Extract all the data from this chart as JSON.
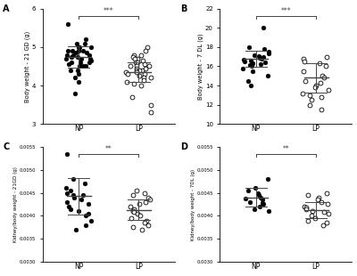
{
  "panel_A": {
    "label": "A",
    "ylabel": "Body weight - 21 GD (g)",
    "ylim": [
      3,
      6
    ],
    "yticks": [
      3,
      4,
      5,
      6
    ],
    "NP_mean": 4.75,
    "NP_sd": 0.28,
    "LP_mean": 4.35,
    "LP_sd": 0.25,
    "significance": "***",
    "NP_data": [
      5.6,
      5.2,
      5.1,
      5.1,
      5.0,
      5.0,
      5.0,
      4.9,
      4.9,
      4.9,
      4.9,
      4.85,
      4.85,
      4.8,
      4.8,
      4.8,
      4.75,
      4.75,
      4.7,
      4.7,
      4.7,
      4.65,
      4.6,
      4.6,
      4.6,
      4.55,
      4.5,
      4.5,
      4.5,
      4.4,
      4.4,
      4.3,
      4.2,
      4.1,
      3.8
    ],
    "LP_data": [
      5.0,
      4.9,
      4.8,
      4.8,
      4.75,
      4.7,
      4.7,
      4.65,
      4.6,
      4.6,
      4.55,
      4.5,
      4.5,
      4.5,
      4.45,
      4.45,
      4.4,
      4.4,
      4.4,
      4.35,
      4.35,
      4.3,
      4.3,
      4.25,
      4.2,
      4.2,
      4.15,
      4.1,
      4.05,
      4.0,
      3.7,
      3.5,
      3.3
    ]
  },
  "panel_B": {
    "label": "B",
    "ylabel": "Body weight - 7 DL (g)",
    "ylim": [
      10,
      22
    ],
    "yticks": [
      10,
      12,
      14,
      16,
      18,
      20,
      22
    ],
    "NP_mean": 16.8,
    "NP_sd": 0.85,
    "LP_mean": 14.8,
    "LP_sd": 1.5,
    "significance": "***",
    "NP_data": [
      20.0,
      18.0,
      17.8,
      17.5,
      17.3,
      17.2,
      17.1,
      17.0,
      16.9,
      16.8,
      16.7,
      16.6,
      16.5,
      16.4,
      16.3,
      16.2,
      16.1,
      16.0,
      15.8,
      15.5,
      15.0,
      14.5,
      14.0
    ],
    "LP_data": [
      17.0,
      16.8,
      16.5,
      16.3,
      16.0,
      15.5,
      15.0,
      14.8,
      14.5,
      14.3,
      14.0,
      13.8,
      13.5,
      13.2,
      13.0,
      12.8,
      12.5,
      12.0,
      11.5
    ]
  },
  "panel_C": {
    "label": "C",
    "ylabel": "Kidney/body weight - 21GD (g)",
    "ylim": [
      0.003,
      0.0055
    ],
    "yticks": [
      0.003,
      0.0035,
      0.004,
      0.0045,
      0.005,
      0.0055
    ],
    "NP_mean": 0.00443,
    "NP_sd": 0.0004,
    "LP_mean": 0.00413,
    "LP_sd": 0.00022,
    "significance": "**",
    "NP_data": [
      0.00535,
      0.0048,
      0.0047,
      0.0046,
      0.00455,
      0.0045,
      0.00445,
      0.00445,
      0.0044,
      0.00435,
      0.0043,
      0.00425,
      0.0042,
      0.00415,
      0.0041,
      0.00405,
      0.004,
      0.0039,
      0.0038,
      0.0037
    ],
    "LP_data": [
      0.00455,
      0.0045,
      0.00445,
      0.0044,
      0.00435,
      0.0043,
      0.00425,
      0.0042,
      0.00415,
      0.0041,
      0.00408,
      0.00405,
      0.004,
      0.00395,
      0.0039,
      0.00385,
      0.0038,
      0.00375,
      0.0037
    ]
  },
  "panel_D": {
    "label": "D",
    "ylabel": "Kidney/body weight - 7DL (g)",
    "ylim": [
      0.003,
      0.0055
    ],
    "yticks": [
      0.003,
      0.0035,
      0.004,
      0.0045,
      0.005,
      0.0055
    ],
    "NP_mean": 0.0044,
    "NP_sd": 0.0002,
    "LP_mean": 0.00412,
    "LP_sd": 0.00018,
    "significance": "**",
    "NP_data": [
      0.0048,
      0.0046,
      0.00455,
      0.0045,
      0.00445,
      0.0044,
      0.00438,
      0.00435,
      0.0043,
      0.00428,
      0.00425,
      0.0042,
      0.00415,
      0.0041
    ],
    "LP_data": [
      0.0045,
      0.00445,
      0.0044,
      0.00435,
      0.0043,
      0.00425,
      0.0042,
      0.00418,
      0.00415,
      0.0041,
      0.00408,
      0.00405,
      0.004,
      0.00395,
      0.0039,
      0.00385,
      0.0038
    ]
  },
  "NP_color": "#000000",
  "LP_edgecolor": "#000000",
  "marker_size": 3.5,
  "line_color": "#444444",
  "sig_color": "#444444",
  "background": "#ffffff"
}
